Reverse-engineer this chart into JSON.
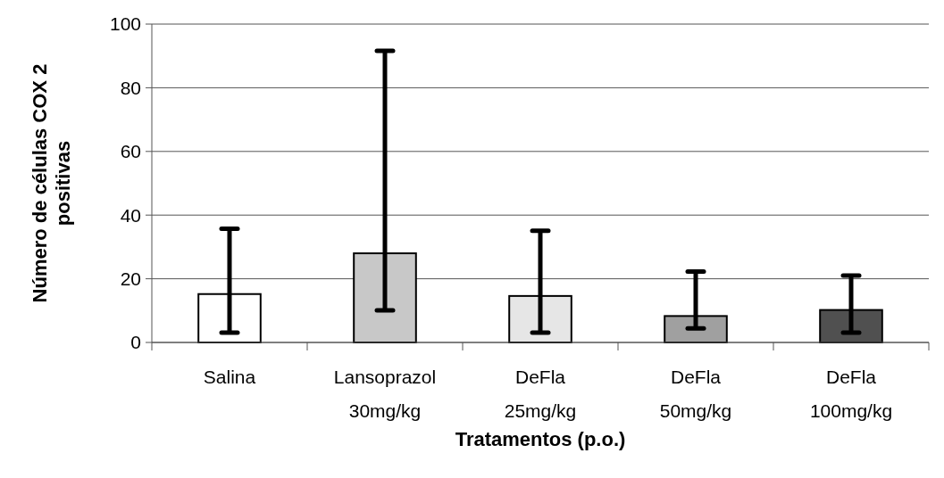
{
  "chart_data": {
    "type": "bar",
    "xlabel": "Tratamentos (p.o.)",
    "ylabel": "Número de células COX 2\npositivas",
    "categories": [
      "Salina",
      "Lansoprazol\n30mg/kg",
      "DeFla\n25mg/kg",
      "DeFla\n50mg/kg",
      "DeFla\n100mg/kg"
    ],
    "values": [
      15.2,
      28.0,
      14.6,
      8.3,
      10.2
    ],
    "colors": [
      "#ffffff",
      "#c8c8c8",
      "#e6e6e6",
      "#a0a0a0",
      "#505050"
    ],
    "errors": [
      [
        3.1,
        35.7
      ],
      [
        10.1,
        91.6
      ],
      [
        3.1,
        35.1
      ],
      [
        4.4,
        22.3
      ],
      [
        3.1,
        21.0
      ]
    ],
    "ylim": [
      0,
      100
    ],
    "yticks": [
      0,
      20,
      40,
      60,
      80,
      100
    ],
    "grid": "y"
  }
}
